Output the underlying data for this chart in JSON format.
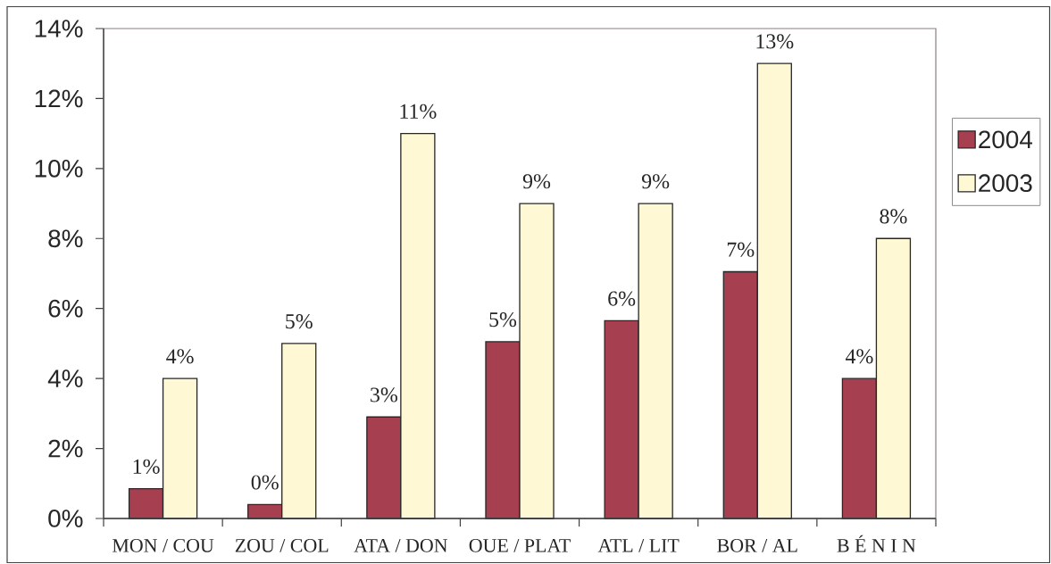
{
  "chart_data": {
    "type": "bar",
    "categories": [
      "MON / COU",
      "ZOU / COL",
      "ATA / DON",
      "OUE / PLAT",
      "ATL / LIT",
      "BOR / AL",
      "B É N I N"
    ],
    "series": [
      {
        "name": "2004",
        "color": "#a63f50",
        "values": [
          0.85,
          0.4,
          2.9,
          5.05,
          5.65,
          7.05,
          4.0
        ],
        "value_labels": [
          "1%",
          "0%",
          "3%",
          "5%",
          "6%",
          "7%",
          "4%"
        ]
      },
      {
        "name": "2003",
        "color": "#fff8d4",
        "values": [
          4,
          5,
          11,
          9,
          9,
          13,
          8
        ],
        "value_labels": [
          "4%",
          "5%",
          "11%",
          "9%",
          "9%",
          "13%",
          "8%"
        ]
      }
    ],
    "ylim": [
      0,
      14
    ],
    "yticks": [
      {
        "value": 0,
        "label": "0%"
      },
      {
        "value": 2,
        "label": "2%"
      },
      {
        "value": 4,
        "label": "4%"
      },
      {
        "value": 6,
        "label": "6%"
      },
      {
        "value": 8,
        "label": "8%"
      },
      {
        "value": 10,
        "label": "10%"
      },
      {
        "value": 12,
        "label": "12%"
      },
      {
        "value": 14,
        "label": "14%"
      }
    ],
    "legend": "right"
  }
}
